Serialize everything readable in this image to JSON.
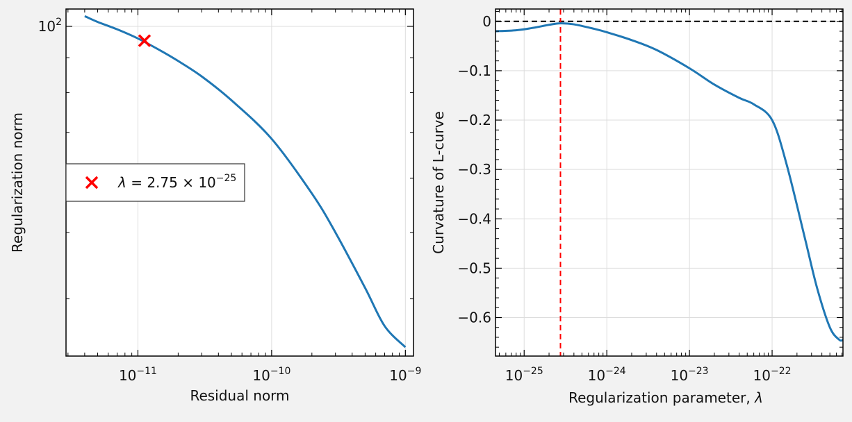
{
  "chart_data": [
    {
      "type": "line",
      "title": "",
      "xlabel": "Residual norm",
      "ylabel": "Regularization norm",
      "xscale": "log",
      "yscale": "log",
      "xlim": [
        2.9e-12,
        1.15e-09
      ],
      "ylim": [
        33,
        106
      ],
      "grid": true,
      "x_ticks": [
        {
          "value": 1e-11,
          "base": "10",
          "exp": "−11"
        },
        {
          "value": 1e-10,
          "base": "10",
          "exp": "−10"
        },
        {
          "value": 1e-09,
          "base": "10",
          "exp": "−9"
        }
      ],
      "y_ticks": [
        {
          "value": 100,
          "base": "10",
          "exp": "2"
        }
      ],
      "series": [
        {
          "color": "#1f77b4",
          "x": [
            4e-12,
            5e-12,
            7e-12,
            1e-11,
            1.5e-11,
            2e-11,
            3e-11,
            5e-11,
            1e-10,
            2e-10,
            3e-10,
            5e-10,
            7e-10,
            1e-09
          ],
          "y": [
            103.5,
            101.5,
            99,
            96,
            92,
            89,
            84.5,
            78,
            68.5,
            57,
            50,
            41.5,
            36.5,
            34
          ]
        }
      ],
      "marker": {
        "x": 1.12e-11,
        "y": 95.3,
        "color": "#ff0000",
        "symbol": "x"
      },
      "legend": {
        "position": "center-left",
        "label_lambda": "λ",
        "label_eq": " = 2.75 × 10",
        "label_exp": "−25"
      }
    },
    {
      "type": "line",
      "title": "",
      "xlabel": "Regularization parameter, ",
      "xlabel_symbol": "λ",
      "ylabel": "Curvature of L-curve",
      "xscale": "log",
      "yscale": "linear",
      "xlim": [
        4.5e-26,
        7.2e-22
      ],
      "ylim": [
        -0.678,
        0.025
      ],
      "grid": true,
      "x_ticks": [
        {
          "value": 1e-25,
          "base": "10",
          "exp": "−25"
        },
        {
          "value": 1e-24,
          "base": "10",
          "exp": "−24"
        },
        {
          "value": 1e-23,
          "base": "10",
          "exp": "−23"
        },
        {
          "value": 1e-22,
          "base": "10",
          "exp": "−22"
        }
      ],
      "y_ticks": [
        {
          "value": 0,
          "label": "0"
        },
        {
          "value": -0.1,
          "label": "−0.1"
        },
        {
          "value": -0.2,
          "label": "−0.2"
        },
        {
          "value": -0.3,
          "label": "−0.3"
        },
        {
          "value": -0.4,
          "label": "−0.4"
        },
        {
          "value": -0.5,
          "label": "−0.5"
        },
        {
          "value": -0.6,
          "label": "−0.6"
        }
      ],
      "series": [
        {
          "color": "#1f77b4",
          "x": [
            4.5e-26,
            8e-26,
            1.3e-25,
            2e-25,
            2.75e-25,
            4e-25,
            7e-25,
            1e-24,
            2e-24,
            4e-24,
            1e-23,
            2e-23,
            4e-23,
            6e-23,
            1e-22,
            1.5e-22,
            2.5e-22,
            3.5e-22,
            5e-22,
            6.5e-22,
            7.2e-22
          ],
          "y": [
            -0.02,
            -0.018,
            -0.013,
            -0.007,
            -0.004,
            -0.006,
            -0.015,
            -0.022,
            -0.038,
            -0.058,
            -0.095,
            -0.128,
            -0.155,
            -0.168,
            -0.2,
            -0.29,
            -0.44,
            -0.54,
            -0.62,
            -0.645,
            -0.645
          ]
        }
      ],
      "hlines": [
        {
          "y": 0,
          "color": "#000000",
          "style": "dashed"
        }
      ],
      "vlines": [
        {
          "x": 2.75e-25,
          "color": "#ff0000",
          "style": "dashed"
        }
      ]
    }
  ]
}
